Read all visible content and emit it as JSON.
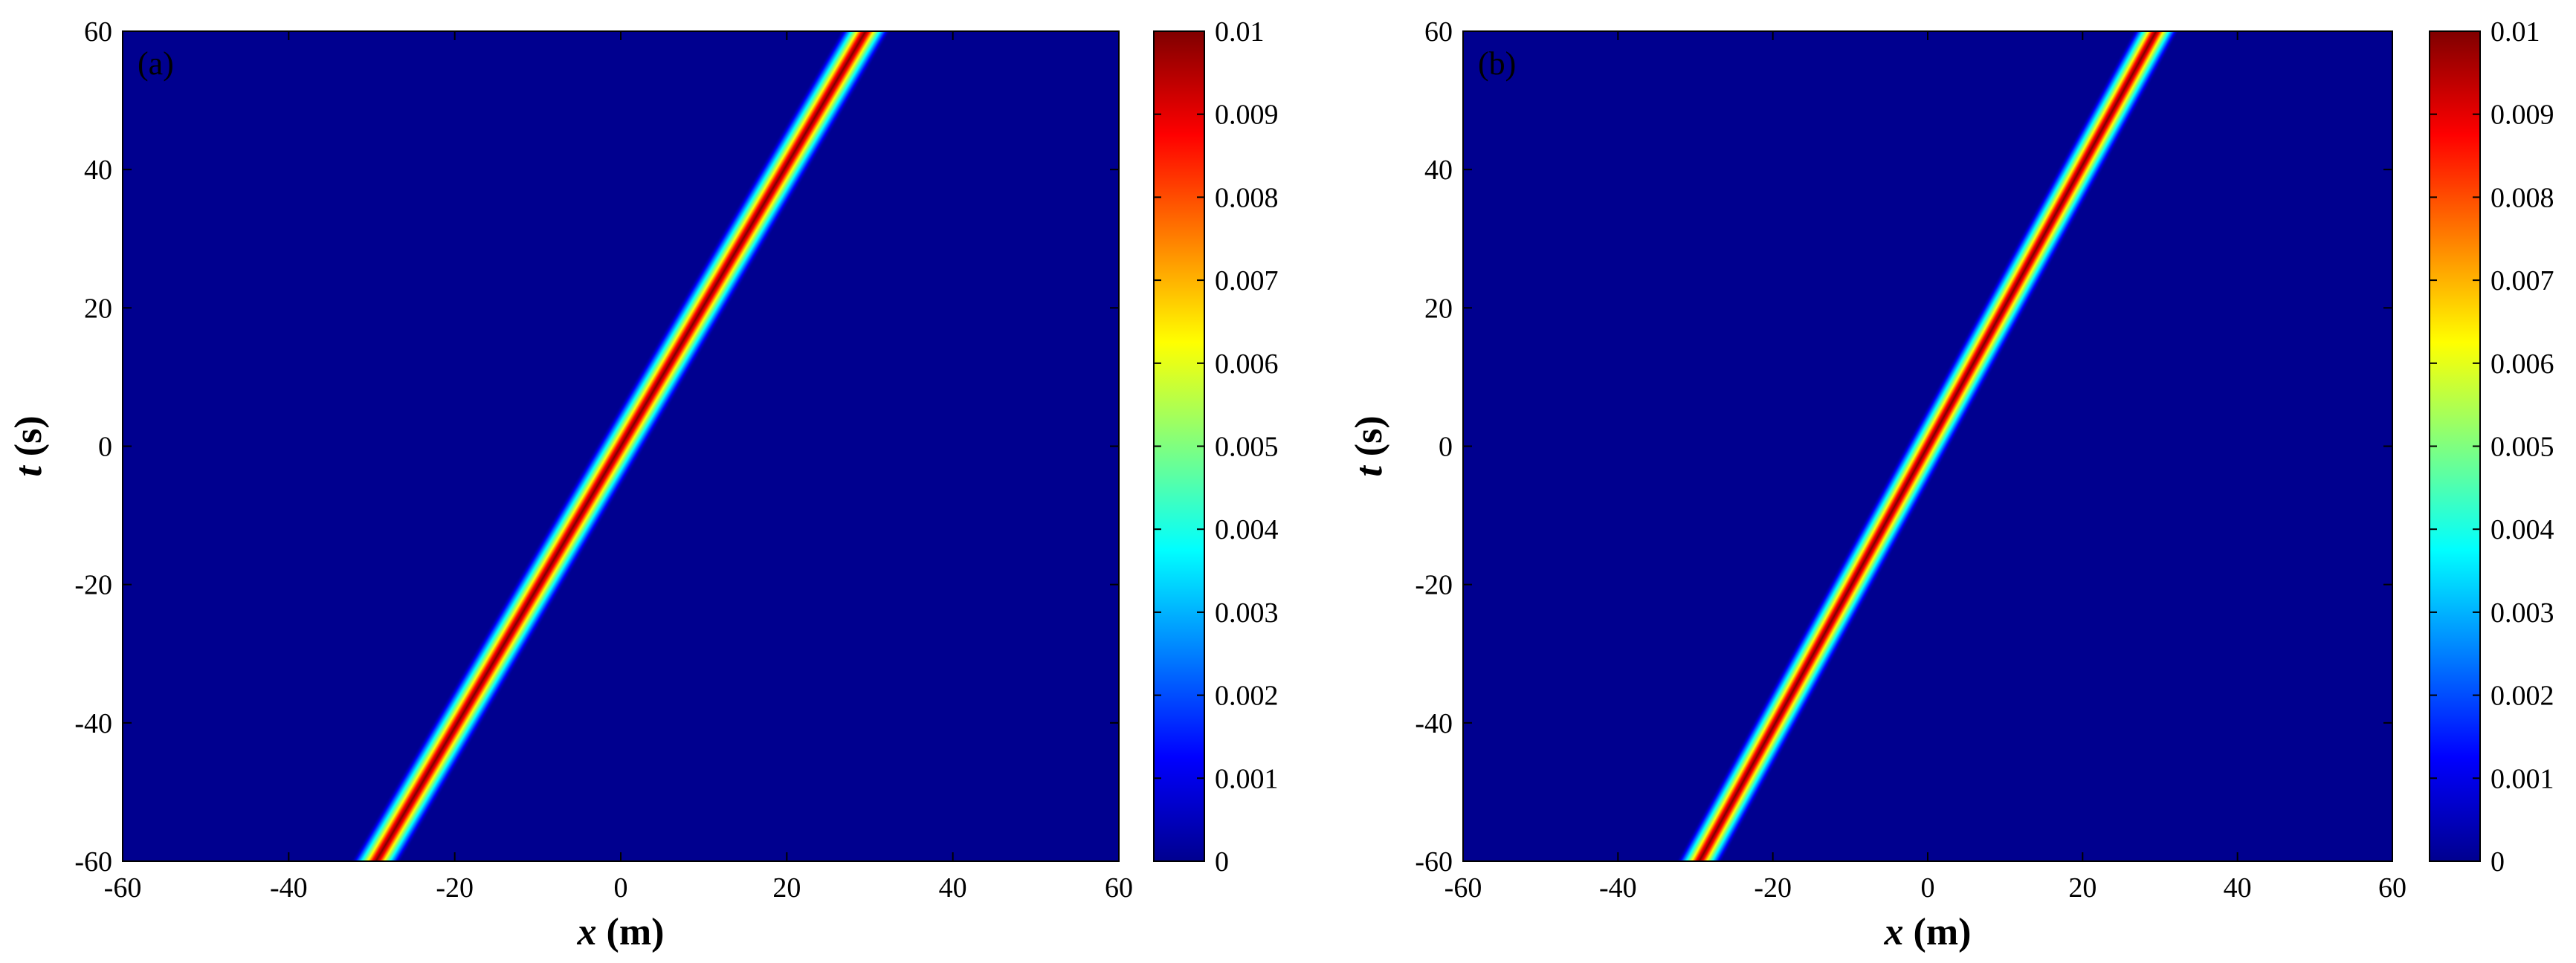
{
  "chart_data": [
    {
      "type": "heatmap",
      "panel_label": "(a)",
      "xlabel_var": "x",
      "xlabel_unit": "(m)",
      "ylabel_var": "t",
      "ylabel_unit": "(s)",
      "xlim": [
        -60,
        60
      ],
      "ylim": [
        -60,
        60
      ],
      "xticks": [
        -60,
        -40,
        -20,
        0,
        20,
        40,
        60
      ],
      "yticks": [
        -60,
        -40,
        -20,
        0,
        20,
        40,
        60
      ],
      "colorbar": {
        "range": [
          0,
          0.01
        ],
        "ticks": [
          "0",
          "0.001",
          "0.002",
          "0.003",
          "0.004",
          "0.005",
          "0.006",
          "0.007",
          "0.008",
          "0.009",
          "0.01"
        ],
        "colormap": "jet"
      },
      "ridge": {
        "x_at_t_min": -29.5,
        "x_at_t_max": 29.5,
        "peak": 0.01,
        "width_m": 2.2
      },
      "background_color": "#00008f"
    },
    {
      "type": "heatmap",
      "panel_label": "(b)",
      "xlabel_var": "x",
      "xlabel_unit": "(m)",
      "ylabel_var": "t",
      "ylabel_unit": "(s)",
      "xlim": [
        -60,
        60
      ],
      "ylim": [
        -60,
        60
      ],
      "xticks": [
        -60,
        -40,
        -20,
        0,
        20,
        40,
        60
      ],
      "yticks": [
        -60,
        -40,
        -20,
        0,
        20,
        40,
        60
      ],
      "colorbar": {
        "range": [
          0,
          0.01
        ],
        "ticks": [
          "0",
          "0.001",
          "0.002",
          "0.003",
          "0.004",
          "0.005",
          "0.006",
          "0.007",
          "0.008",
          "0.009",
          "0.01"
        ],
        "colormap": "jet"
      },
      "ridge": {
        "x_at_t_min": -29.5,
        "x_at_t_max": 29.5,
        "peak": 0.01,
        "width_m": 2.2
      },
      "background_color": "#00008f"
    }
  ]
}
